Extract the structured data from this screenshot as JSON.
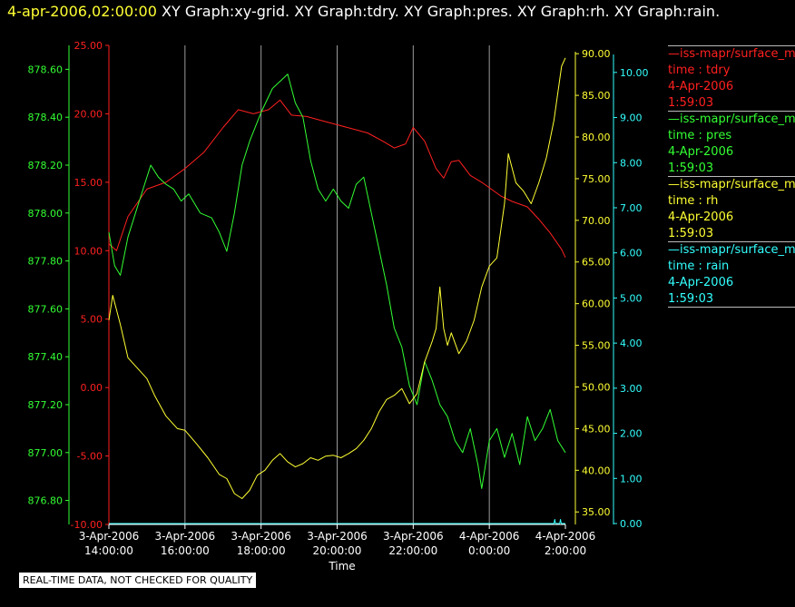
{
  "header": {
    "timestamp": "4-apr-2006,02:00:00",
    "graphs": "XY Graph:xy-grid.  XY Graph:tdry.  XY Graph:pres.  XY Graph:rh.  XY Graph:rain."
  },
  "legend": [
    {
      "source": "—iss-mapr/surface_m",
      "label": "time : tdry",
      "date": "4-Apr-2006",
      "time": "1:59:03",
      "color": "#ff2020"
    },
    {
      "source": "—iss-mapr/surface_m",
      "label": "time : pres",
      "date": "4-Apr-2006",
      "time": "1:59:03",
      "color": "#33ff33"
    },
    {
      "source": "—iss-mapr/surface_m",
      "label": "time : rh",
      "date": "4-Apr-2006",
      "time": "1:59:03",
      "color": "#ffff33"
    },
    {
      "source": "—iss-mapr/surface_m",
      "label": "time : rain",
      "date": "4-Apr-2006",
      "time": "1:59:03",
      "color": "#33ffff"
    }
  ],
  "qc_note": "REAL-TIME DATA, NOT CHECKED FOR QUALITY",
  "chart_data": {
    "type": "line",
    "xlabel": "Time",
    "x_range_hours": [
      14.0,
      26.0
    ],
    "x_ticks": [
      {
        "h": 14,
        "date": "3-Apr-2006",
        "time": "14:00:00"
      },
      {
        "h": 16,
        "date": "3-Apr-2006",
        "time": "16:00:00"
      },
      {
        "h": 18,
        "date": "3-Apr-2006",
        "time": "18:00:00"
      },
      {
        "h": 20,
        "date": "3-Apr-2006",
        "time": "20:00:00"
      },
      {
        "h": 22,
        "date": "3-Apr-2006",
        "time": "22:00:00"
      },
      {
        "h": 24,
        "date": "4-Apr-2006",
        "time": "0:00:00"
      },
      {
        "h": 26,
        "date": "4-Apr-2006",
        "time": "2:00:00"
      }
    ],
    "grid": true,
    "series": [
      {
        "name": "tdry",
        "color": "#ff2020",
        "ylim": [
          -10,
          25
        ],
        "ticks": [
          "25.00",
          "20.00",
          "15.00",
          "10.00",
          "5.00",
          "0.00",
          "-5.00",
          "-10.00"
        ],
        "points": [
          [
            14.0,
            10.5
          ],
          [
            14.2,
            10.0
          ],
          [
            14.5,
            12.5
          ],
          [
            15.0,
            14.5
          ],
          [
            15.5,
            15.0
          ],
          [
            16.0,
            16.0
          ],
          [
            16.5,
            17.2
          ],
          [
            17.0,
            19.0
          ],
          [
            17.4,
            20.3
          ],
          [
            17.8,
            20.0
          ],
          [
            18.2,
            20.3
          ],
          [
            18.5,
            21.0
          ],
          [
            18.8,
            19.9
          ],
          [
            19.2,
            19.8
          ],
          [
            19.6,
            19.5
          ],
          [
            20.0,
            19.2
          ],
          [
            20.4,
            18.9
          ],
          [
            20.8,
            18.6
          ],
          [
            21.2,
            18.0
          ],
          [
            21.5,
            17.5
          ],
          [
            21.8,
            17.8
          ],
          [
            22.0,
            19.0
          ],
          [
            22.3,
            18.0
          ],
          [
            22.6,
            16.0
          ],
          [
            22.8,
            15.3
          ],
          [
            23.0,
            16.5
          ],
          [
            23.2,
            16.6
          ],
          [
            23.5,
            15.5
          ],
          [
            23.8,
            15.0
          ],
          [
            24.0,
            14.6
          ],
          [
            24.3,
            14.0
          ],
          [
            24.6,
            13.6
          ],
          [
            25.0,
            13.2
          ],
          [
            25.3,
            12.3
          ],
          [
            25.6,
            11.3
          ],
          [
            25.9,
            10.1
          ],
          [
            26.0,
            9.5
          ]
        ]
      },
      {
        "name": "pres",
        "color": "#33ff33",
        "ylim": [
          876.7,
          878.7
        ],
        "ticks": [
          "878.60",
          "878.40",
          "878.20",
          "878.00",
          "877.80",
          "877.60",
          "877.40",
          "877.20",
          "877.00",
          "876.80"
        ],
        "points": [
          [
            14.0,
            877.92
          ],
          [
            14.15,
            877.78
          ],
          [
            14.3,
            877.74
          ],
          [
            14.5,
            877.9
          ],
          [
            14.7,
            878.0
          ],
          [
            14.9,
            878.1
          ],
          [
            15.1,
            878.2
          ],
          [
            15.3,
            878.15
          ],
          [
            15.5,
            878.12
          ],
          [
            15.7,
            878.1
          ],
          [
            15.9,
            878.05
          ],
          [
            16.1,
            878.08
          ],
          [
            16.4,
            878.0
          ],
          [
            16.7,
            877.98
          ],
          [
            16.9,
            877.92
          ],
          [
            17.1,
            877.84
          ],
          [
            17.3,
            878.0
          ],
          [
            17.5,
            878.2
          ],
          [
            17.7,
            878.3
          ],
          [
            18.0,
            878.42
          ],
          [
            18.3,
            878.52
          ],
          [
            18.5,
            878.55
          ],
          [
            18.7,
            878.58
          ],
          [
            18.9,
            878.46
          ],
          [
            19.1,
            878.4
          ],
          [
            19.3,
            878.22
          ],
          [
            19.5,
            878.1
          ],
          [
            19.7,
            878.05
          ],
          [
            19.9,
            878.1
          ],
          [
            20.1,
            878.05
          ],
          [
            20.3,
            878.02
          ],
          [
            20.5,
            878.12
          ],
          [
            20.7,
            878.15
          ],
          [
            20.9,
            878.0
          ],
          [
            21.1,
            877.85
          ],
          [
            21.3,
            877.7
          ],
          [
            21.5,
            877.52
          ],
          [
            21.7,
            877.44
          ],
          [
            21.9,
            877.28
          ],
          [
            22.1,
            877.2
          ],
          [
            22.3,
            877.38
          ],
          [
            22.5,
            877.3
          ],
          [
            22.7,
            877.2
          ],
          [
            22.9,
            877.15
          ],
          [
            23.1,
            877.05
          ],
          [
            23.3,
            877.0
          ],
          [
            23.5,
            877.1
          ],
          [
            23.7,
            876.95
          ],
          [
            23.8,
            876.85
          ],
          [
            24.0,
            877.05
          ],
          [
            24.2,
            877.1
          ],
          [
            24.4,
            876.98
          ],
          [
            24.6,
            877.08
          ],
          [
            24.8,
            876.95
          ],
          [
            25.0,
            877.15
          ],
          [
            25.2,
            877.05
          ],
          [
            25.4,
            877.1
          ],
          [
            25.6,
            877.18
          ],
          [
            25.8,
            877.05
          ],
          [
            26.0,
            877.0
          ]
        ]
      },
      {
        "name": "rh",
        "color": "#ffff33",
        "ylim": [
          33.5,
          91.0
        ],
        "ticks": [
          "90.00",
          "85.00",
          "80.00",
          "75.00",
          "70.00",
          "65.00",
          "60.00",
          "55.00",
          "50.00",
          "45.00",
          "40.00",
          "35.00"
        ],
        "points": [
          [
            14.0,
            58.0
          ],
          [
            14.1,
            61.0
          ],
          [
            14.3,
            57.5
          ],
          [
            14.5,
            53.5
          ],
          [
            14.8,
            52.0
          ],
          [
            15.0,
            51.0
          ],
          [
            15.2,
            49.0
          ],
          [
            15.5,
            46.5
          ],
          [
            15.8,
            45.0
          ],
          [
            16.0,
            44.8
          ],
          [
            16.3,
            43.2
          ],
          [
            16.6,
            41.5
          ],
          [
            16.9,
            39.5
          ],
          [
            17.1,
            39.0
          ],
          [
            17.3,
            37.2
          ],
          [
            17.5,
            36.6
          ],
          [
            17.7,
            37.6
          ],
          [
            17.9,
            39.4
          ],
          [
            18.1,
            40.0
          ],
          [
            18.3,
            41.2
          ],
          [
            18.5,
            42.0
          ],
          [
            18.7,
            41.0
          ],
          [
            18.9,
            40.4
          ],
          [
            19.1,
            40.8
          ],
          [
            19.3,
            41.5
          ],
          [
            19.5,
            41.2
          ],
          [
            19.7,
            41.7
          ],
          [
            19.9,
            41.8
          ],
          [
            20.1,
            41.5
          ],
          [
            20.3,
            42.0
          ],
          [
            20.5,
            42.6
          ],
          [
            20.7,
            43.6
          ],
          [
            20.9,
            45.0
          ],
          [
            21.1,
            47.0
          ],
          [
            21.3,
            48.5
          ],
          [
            21.5,
            49.0
          ],
          [
            21.7,
            49.8
          ],
          [
            21.9,
            48.0
          ],
          [
            22.1,
            49.2
          ],
          [
            22.3,
            53.0
          ],
          [
            22.5,
            55.5
          ],
          [
            22.6,
            57.0
          ],
          [
            22.7,
            62.0
          ],
          [
            22.8,
            57.0
          ],
          [
            22.9,
            55.0
          ],
          [
            23.0,
            56.5
          ],
          [
            23.2,
            54.0
          ],
          [
            23.4,
            55.5
          ],
          [
            23.6,
            58.0
          ],
          [
            23.8,
            62.0
          ],
          [
            24.0,
            64.5
          ],
          [
            24.2,
            65.5
          ],
          [
            24.4,
            72.0
          ],
          [
            24.5,
            78.0
          ],
          [
            24.7,
            74.5
          ],
          [
            24.9,
            73.5
          ],
          [
            25.1,
            72.0
          ],
          [
            25.3,
            74.5
          ],
          [
            25.5,
            77.5
          ],
          [
            25.7,
            82.0
          ],
          [
            25.9,
            88.5
          ],
          [
            26.0,
            89.5
          ]
        ]
      },
      {
        "name": "rain",
        "color": "#33ffff",
        "ylim": [
          -0.02,
          10.6
        ],
        "ticks": [
          "10.00",
          "9.00",
          "8.00",
          "7.00",
          "6.00",
          "5.00",
          "4.00",
          "3.00",
          "2.00",
          "1.00",
          "0.00"
        ],
        "points": [
          [
            14.0,
            0.0
          ],
          [
            25.7,
            0.0
          ],
          [
            25.72,
            0.09
          ],
          [
            25.74,
            0.0
          ],
          [
            25.85,
            0.0
          ],
          [
            25.87,
            0.09
          ],
          [
            25.89,
            0.0
          ],
          [
            26.0,
            0.0
          ]
        ]
      }
    ]
  }
}
